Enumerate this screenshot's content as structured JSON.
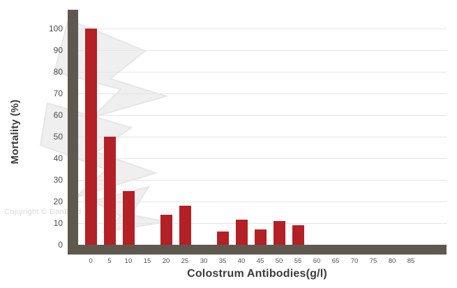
{
  "watermark": {
    "text": "Copyright © DanBred"
  },
  "chart_data": {
    "type": "bar",
    "title": "",
    "xlabel": "Colostrum Antibodies(g/l)",
    "ylabel": "Mortality (%)",
    "x_ticks": [
      0,
      5,
      10,
      15,
      20,
      25,
      30,
      35,
      40,
      45,
      50,
      55,
      60,
      65,
      70,
      75,
      80,
      85
    ],
    "y_ticks": [
      0,
      10,
      20,
      30,
      40,
      50,
      60,
      70,
      80,
      90,
      100
    ],
    "ylim": [
      0,
      100
    ],
    "grid": "horizontal",
    "legend": "none",
    "colors": {
      "bar": "#b32025",
      "axis": "#5f584f",
      "grid": "#e5e5e5"
    },
    "series": [
      {
        "name": "Mortality",
        "points": [
          {
            "x": 0,
            "y": 100
          },
          {
            "x": 5,
            "y": 50
          },
          {
            "x": 10,
            "y": 25
          },
          {
            "x": 20,
            "y": 14
          },
          {
            "x": 25,
            "y": 18
          },
          {
            "x": 35,
            "y": 6
          },
          {
            "x": 40,
            "y": 11.5
          },
          {
            "x": 45,
            "y": 7
          },
          {
            "x": 50,
            "y": 11
          },
          {
            "x": 55,
            "y": 9
          }
        ]
      }
    ]
  }
}
